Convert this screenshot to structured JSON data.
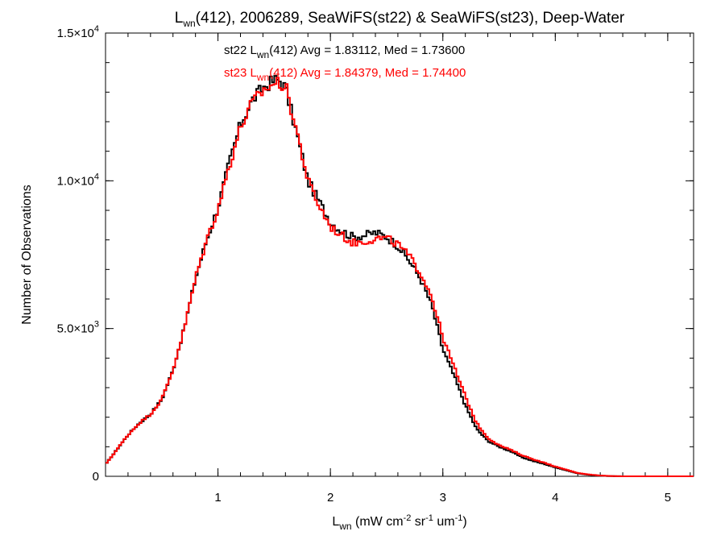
{
  "chart_data": {
    "type": "line",
    "step": true,
    "title": {
      "pre": "L",
      "pre_sub": "wn",
      "post": "(412), 2006289, SeaWiFS(st22) & SeaWiFS(st23), Deep-Water"
    },
    "xlabel": {
      "pre": "L",
      "pre_sub": "wn",
      "parts": [
        {
          "text": " (mW cm",
          "sup": "-2"
        },
        {
          "text": " sr",
          "sup": "-1"
        },
        {
          "text": " um",
          "sup": "-1"
        },
        {
          "text": ")",
          "sup": ""
        }
      ]
    },
    "ylabel": "Number of Observations",
    "xlim": [
      0.0,
      5.23
    ],
    "ylim": [
      0,
      15000
    ],
    "x_ticks": [
      {
        "value": 1,
        "label": "1"
      },
      {
        "value": 2,
        "label": "2"
      },
      {
        "value": 3,
        "label": "3"
      },
      {
        "value": 4,
        "label": "4"
      },
      {
        "value": 5,
        "label": "5"
      }
    ],
    "y_ticks": [
      {
        "value": 0,
        "mant": "0",
        "exp": ""
      },
      {
        "value": 5000,
        "mant": "5.0×10",
        "exp": "3"
      },
      {
        "value": 10000,
        "mant": "1.0×10",
        "exp": "4"
      },
      {
        "value": 15000,
        "mant": "1.5×10",
        "exp": "4"
      }
    ],
    "x_minor_step": 0.2,
    "y_minor_step": 1000,
    "series": [
      {
        "name": "st22",
        "color": "#000000",
        "stats": {
          "pre": "st22 L",
          "sub": "wn",
          "post": "(412) Avg = 1.83112, Med = 1.73600"
        },
        "x": [
          0.0,
          0.1,
          0.2,
          0.3,
          0.4,
          0.5,
          0.6,
          0.7,
          0.8,
          0.9,
          1.0,
          1.1,
          1.2,
          1.3,
          1.4,
          1.5,
          1.55,
          1.6,
          1.7,
          1.8,
          1.9,
          2.0,
          2.1,
          2.2,
          2.3,
          2.4,
          2.5,
          2.6,
          2.7,
          2.8,
          2.9,
          3.0,
          3.1,
          3.2,
          3.3,
          3.4,
          3.5,
          3.6,
          3.7,
          3.8,
          3.9,
          4.0,
          4.1,
          4.2,
          4.3,
          4.4,
          4.5,
          4.6,
          4.8,
          5.0,
          5.23
        ],
        "y": [
          400,
          900,
          1400,
          1800,
          2100,
          2600,
          3600,
          5000,
          6700,
          8000,
          9100,
          10600,
          11900,
          12700,
          13150,
          13400,
          13400,
          13150,
          11600,
          10000,
          9300,
          8600,
          8300,
          8100,
          8150,
          8250,
          8100,
          7800,
          7300,
          6700,
          5800,
          4300,
          3400,
          2400,
          1600,
          1200,
          1000,
          850,
          650,
          520,
          420,
          300,
          200,
          100,
          50,
          20,
          5,
          0,
          0,
          0,
          0
        ]
      },
      {
        "name": "st23",
        "color": "#ff0000",
        "stats": {
          "pre": "st23 L",
          "sub": "wn",
          "post": "(412) Avg = 1.84379, Med = 1.74400"
        },
        "x": [
          0.0,
          0.1,
          0.2,
          0.3,
          0.4,
          0.5,
          0.6,
          0.7,
          0.8,
          0.9,
          1.0,
          1.1,
          1.2,
          1.3,
          1.4,
          1.5,
          1.55,
          1.6,
          1.7,
          1.8,
          1.9,
          2.0,
          2.1,
          2.2,
          2.3,
          2.4,
          2.5,
          2.6,
          2.7,
          2.8,
          2.9,
          3.0,
          3.1,
          3.2,
          3.3,
          3.4,
          3.5,
          3.6,
          3.7,
          3.8,
          3.9,
          4.0,
          4.1,
          4.2,
          4.3,
          4.4,
          4.5,
          4.6,
          4.8,
          5.0,
          5.23
        ],
        "y": [
          400,
          900,
          1400,
          1800,
          2100,
          2600,
          3600,
          5000,
          6700,
          8000,
          9050,
          10500,
          11800,
          12600,
          13050,
          13300,
          13300,
          13200,
          11700,
          10000,
          9150,
          8450,
          8150,
          7900,
          7950,
          8050,
          8050,
          7850,
          7450,
          6900,
          6100,
          4700,
          3700,
          2700,
          1800,
          1300,
          1050,
          900,
          720,
          580,
          460,
          330,
          220,
          110,
          60,
          25,
          8,
          0,
          0,
          0,
          0
        ]
      }
    ]
  }
}
